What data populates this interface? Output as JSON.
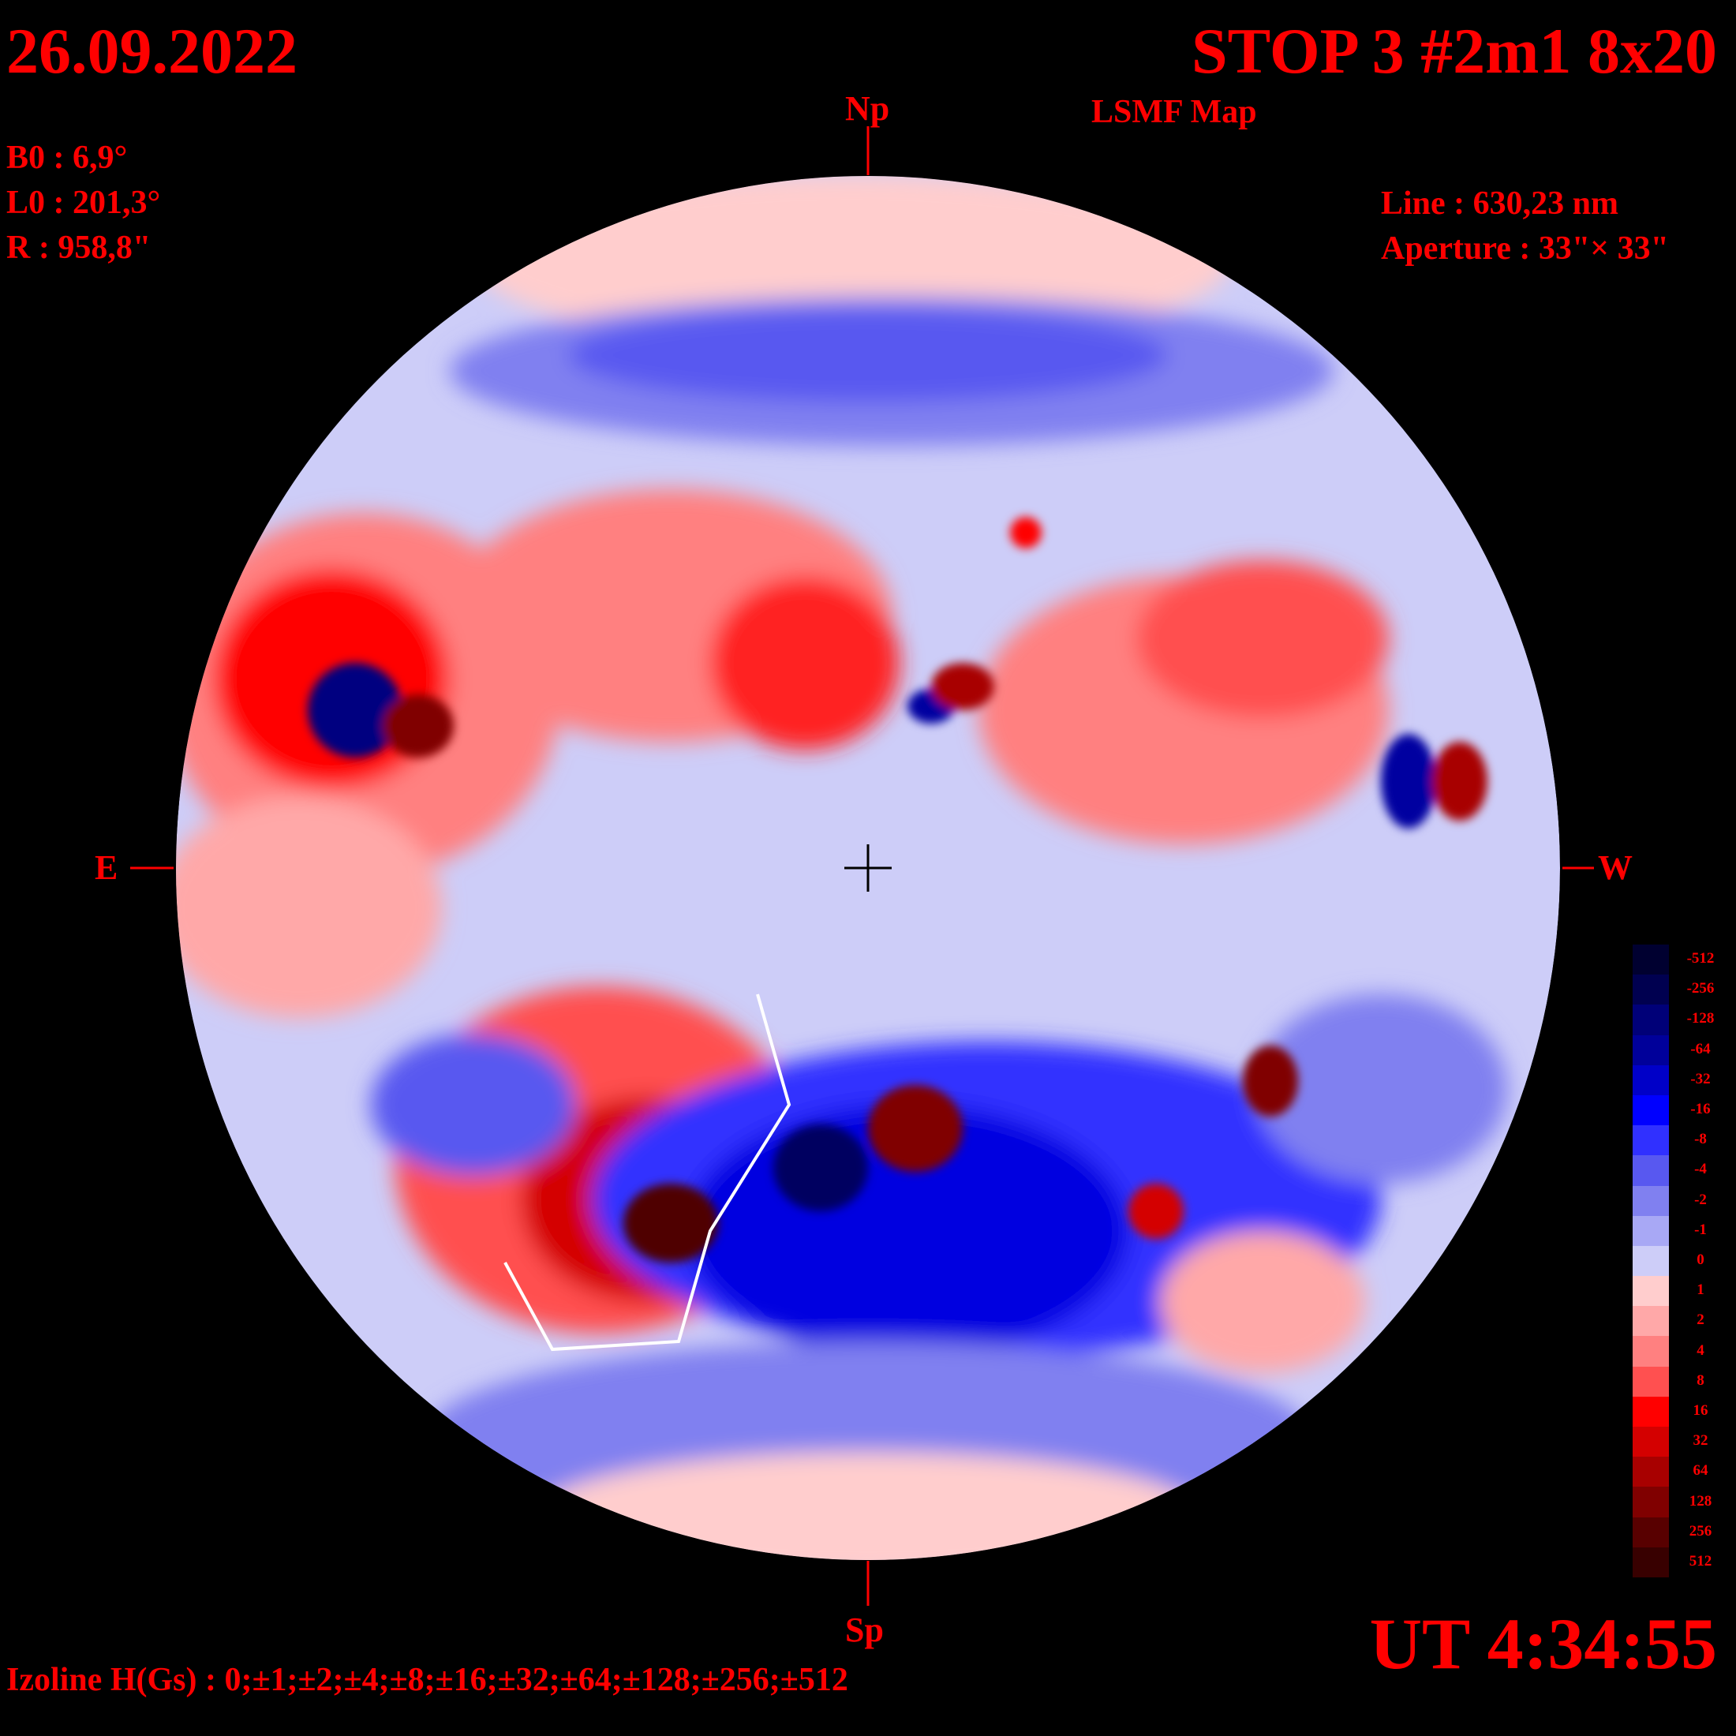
{
  "header": {
    "date": "26.09.2022",
    "title": "STOP 3 #2m1 8x20",
    "subtitle": "LSMF  Map"
  },
  "params": {
    "b0": "B0 : 6,9°",
    "l0": "L0 : 201,3°",
    "r": "R  : 958,8\""
  },
  "instrument": {
    "line": "Line :  630,23 nm",
    "aperture": "Aperture : 33\"× 33\""
  },
  "directions": {
    "north": "Np",
    "south": "Sp",
    "east": "E",
    "west": "W"
  },
  "time": "UT 4:34:55",
  "izoline": "Izoline H(Gs) : 0;±1;±2;±4;±8;±16;±32;±64;±128;±256;±512",
  "colors": {
    "background": "#000000",
    "text": "#ff0000",
    "negative_strong": "#000050",
    "positive_strong": "#3a0000"
  },
  "scale": {
    "labels": [
      "-512",
      "-256",
      "-128",
      "-64",
      "-32",
      "-16",
      "-8",
      "-4",
      "-2",
      "-1",
      "0",
      "1",
      "2",
      "4",
      "8",
      "16",
      "32",
      "64",
      "128",
      "256",
      "512"
    ],
    "colors": [
      "#000030",
      "#000050",
      "#000078",
      "#00009a",
      "#0000c8",
      "#0000ff",
      "#3030ff",
      "#5858f0",
      "#8080f0",
      "#a8a8f5",
      "#cdcdf8",
      "#ffcdcd",
      "#ffa8a8",
      "#ff8080",
      "#ff5050",
      "#ff0000",
      "#d40000",
      "#a80000",
      "#800000",
      "#580000",
      "#380000"
    ]
  }
}
